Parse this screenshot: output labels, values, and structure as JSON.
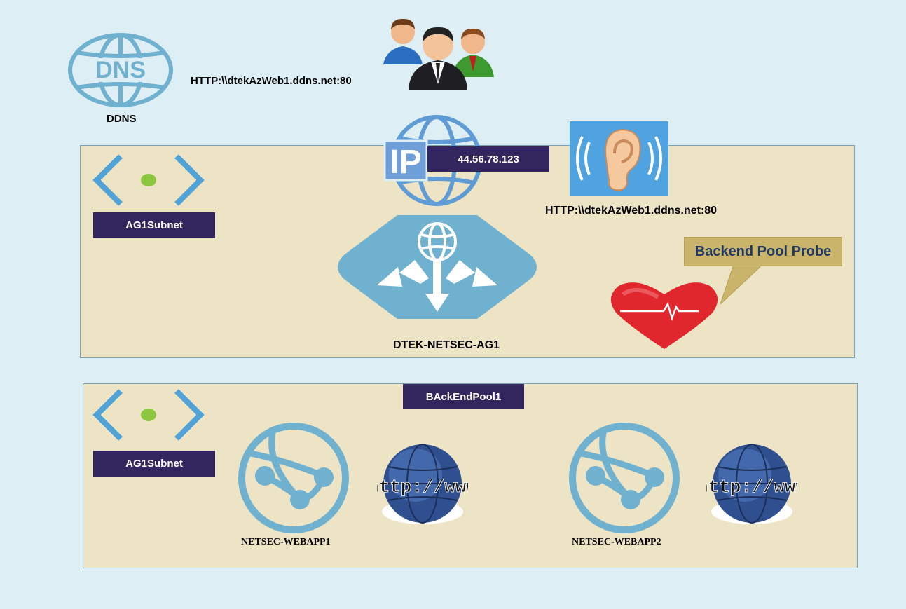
{
  "dns": {
    "label": "DDNS"
  },
  "top_url": "HTTP:\\\\dtekAzWeb1.ddns.net:80",
  "public_ip": "44.56.78.123",
  "listener_url": "HTTP:\\\\dtekAzWeb1.ddns.net:80",
  "gateway": {
    "subnet_label": "AG1Subnet",
    "name": "DTEK-NETSEC-AG1",
    "probe_label": "Backend Pool Probe"
  },
  "backend": {
    "pool_label": "BAckEndPool1",
    "subnet_label": "AG1Subnet",
    "webapps": [
      "NETSEC-WEBAPP1",
      "NETSEC-WEBAPP2"
    ]
  },
  "globe_text": "http://www",
  "icons": {
    "dns": "dns-globe-icon",
    "users": "users-group-icon",
    "public_ip": "public-ip-icon",
    "listener": "ear-listener-icon",
    "subnet": "subnet-brackets-icon",
    "gateway": "application-gateway-icon",
    "probe": "heartbeat-heart-icon",
    "webapp": "web-app-icon",
    "www": "www-globe-icon"
  },
  "colors": {
    "background": "#deeef5",
    "panel": "#ede3c5",
    "tag": "#33265e",
    "azure_icon": "#6fb1cf",
    "callout": "#c9b46a",
    "heart": "#e0272e"
  }
}
